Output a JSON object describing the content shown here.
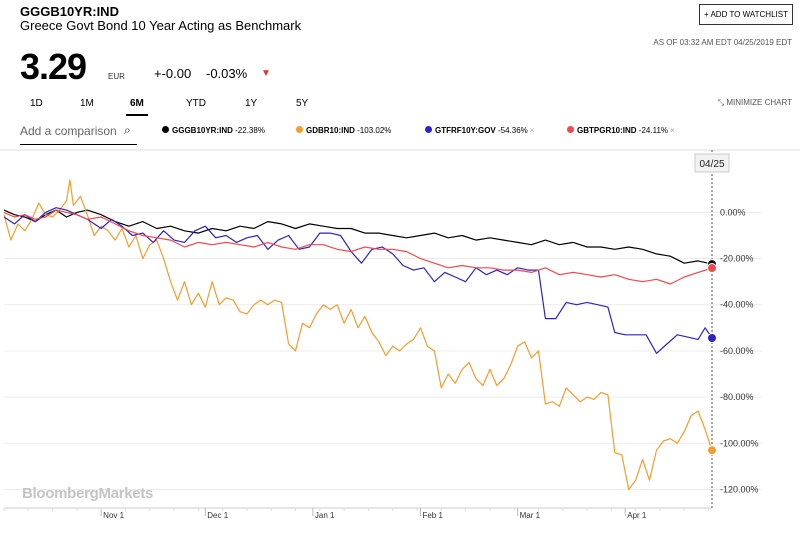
{
  "header": {
    "ticker": "GGGB10YR:IND",
    "name": "Greece Govt Bond 10 Year Acting as Benchmark",
    "watchlist_label": "+ ADD TO WATCHLIST",
    "as_of": "AS OF 03:32 AM EDT 04/25/2019 EDT",
    "price": "3.29",
    "currency": "EUR",
    "change": "+-0.00",
    "change_pct": "-0.03%",
    "change_icon": "down-triangle"
  },
  "tabs": [
    {
      "label": "1D",
      "active": false
    },
    {
      "label": "1M",
      "active": false
    },
    {
      "label": "6M",
      "active": true
    },
    {
      "label": "YTD",
      "active": false
    },
    {
      "label": "1Y",
      "active": false
    },
    {
      "label": "5Y",
      "active": false
    }
  ],
  "minimize_label": "MINIMIZE CHART",
  "compare": {
    "placeholder": "Add a comparison",
    "icon": "search-icon"
  },
  "legend": [
    {
      "label": "GGGB10YR:IND",
      "value": "-22.38%",
      "color": "#000000",
      "removable": false
    },
    {
      "label": "GDBR10:IND",
      "value": "-103.02%",
      "color": "#f39c2f",
      "removable": false
    },
    {
      "label": "GTFRF10Y:GOV",
      "value": "-54.36%",
      "color": "#2d22c8",
      "removable": true
    },
    {
      "label": "GBTPGR10:IND",
      "value": "-24.11%",
      "color": "#f0494d",
      "removable": true
    }
  ],
  "brand": "BloombergMarkets",
  "chart_data": {
    "type": "line",
    "x_tick_labels": [
      "Nov 1",
      "Dec 1",
      "Jan 1",
      "Feb 1",
      "Mar 1",
      "Apr 1"
    ],
    "y_tick_labels": [
      "0.00%",
      "-20.00%",
      "-40.00%",
      "-60.00%",
      "-80.00%",
      "-100.00%",
      "-120.00%"
    ],
    "ylim": [
      -128,
      27
    ],
    "x_range_days": [
      -28,
      176
    ],
    "crosshair_label": "04/25",
    "crosshair_day": 176,
    "grid": true,
    "series": [
      {
        "name": "GGGB10YR:IND",
        "color": "#000000",
        "end_value": -22.38,
        "points": [
          [
            -28,
            1
          ],
          [
            -25,
            -1
          ],
          [
            -22,
            -2
          ],
          [
            -19,
            -4
          ],
          [
            -16,
            -1
          ],
          [
            -13,
            1
          ],
          [
            -10,
            -2
          ],
          [
            -7,
            0
          ],
          [
            -4,
            1
          ],
          [
            0,
            -1
          ],
          [
            4,
            -4
          ],
          [
            8,
            -6
          ],
          [
            12,
            -4
          ],
          [
            16,
            -7
          ],
          [
            20,
            -6
          ],
          [
            24,
            -8
          ],
          [
            28,
            -9
          ],
          [
            32,
            -7
          ],
          [
            36,
            -8
          ],
          [
            40,
            -6
          ],
          [
            44,
            -7
          ],
          [
            48,
            -4
          ],
          [
            52,
            -5
          ],
          [
            56,
            -7
          ],
          [
            60,
            -5
          ],
          [
            64,
            -6
          ],
          [
            68,
            -7
          ],
          [
            72,
            -7
          ],
          [
            76,
            -9
          ],
          [
            80,
            -9
          ],
          [
            84,
            -10
          ],
          [
            88,
            -11
          ],
          [
            92,
            -10
          ],
          [
            96,
            -9
          ],
          [
            100,
            -11
          ],
          [
            104,
            -10
          ],
          [
            108,
            -12
          ],
          [
            112,
            -11
          ],
          [
            116,
            -12
          ],
          [
            120,
            -13
          ],
          [
            124,
            -14
          ],
          [
            128,
            -12
          ],
          [
            132,
            -14
          ],
          [
            136,
            -13
          ],
          [
            140,
            -15
          ],
          [
            144,
            -15
          ],
          [
            148,
            -16
          ],
          [
            152,
            -15
          ],
          [
            156,
            -16
          ],
          [
            160,
            -18
          ],
          [
            164,
            -19
          ],
          [
            168,
            -22
          ],
          [
            172,
            -21
          ],
          [
            176,
            -22.4
          ]
        ]
      },
      {
        "name": "GDBR10:IND",
        "color": "#f39c2f",
        "end_value": -103.02,
        "points": [
          [
            -28,
            -1
          ],
          [
            -26,
            -12
          ],
          [
            -24,
            -5
          ],
          [
            -22,
            -8
          ],
          [
            -20,
            -3
          ],
          [
            -18,
            4
          ],
          [
            -16,
            -1
          ],
          [
            -14,
            -2
          ],
          [
            -12,
            1
          ],
          [
            -10,
            5
          ],
          [
            -9,
            14
          ],
          [
            -8,
            3
          ],
          [
            -6,
            7
          ],
          [
            -4,
            -1
          ],
          [
            -2,
            -10
          ],
          [
            0,
            -6
          ],
          [
            2,
            -8
          ],
          [
            4,
            -12
          ],
          [
            6,
            -7
          ],
          [
            8,
            -15
          ],
          [
            10,
            -10
          ],
          [
            12,
            -20
          ],
          [
            14,
            -14
          ],
          [
            16,
            -12
          ],
          [
            18,
            -20
          ],
          [
            20,
            -30
          ],
          [
            22,
            -38
          ],
          [
            24,
            -30
          ],
          [
            26,
            -40
          ],
          [
            28,
            -35
          ],
          [
            30,
            -41
          ],
          [
            32,
            -30
          ],
          [
            34,
            -40
          ],
          [
            36,
            -37
          ],
          [
            38,
            -38
          ],
          [
            40,
            -43
          ],
          [
            42,
            -44
          ],
          [
            44,
            -40
          ],
          [
            46,
            -38
          ],
          [
            48,
            -40
          ],
          [
            50,
            -38
          ],
          [
            52,
            -39
          ],
          [
            54,
            -57
          ],
          [
            56,
            -60
          ],
          [
            58,
            -48
          ],
          [
            60,
            -50
          ],
          [
            62,
            -44
          ],
          [
            64,
            -40
          ],
          [
            66,
            -42
          ],
          [
            68,
            -40
          ],
          [
            70,
            -48
          ],
          [
            72,
            -42
          ],
          [
            74,
            -50
          ],
          [
            76,
            -45
          ],
          [
            78,
            -52
          ],
          [
            80,
            -56
          ],
          [
            82,
            -62
          ],
          [
            84,
            -58
          ],
          [
            86,
            -60
          ],
          [
            88,
            -57
          ],
          [
            90,
            -55
          ],
          [
            92,
            -50
          ],
          [
            94,
            -58
          ],
          [
            96,
            -60
          ],
          [
            98,
            -76
          ],
          [
            100,
            -70
          ],
          [
            102,
            -74
          ],
          [
            104,
            -68
          ],
          [
            106,
            -65
          ],
          [
            108,
            -72
          ],
          [
            110,
            -75
          ],
          [
            112,
            -68
          ],
          [
            114,
            -75
          ],
          [
            116,
            -72
          ],
          [
            118,
            -66
          ],
          [
            120,
            -58
          ],
          [
            122,
            -56
          ],
          [
            124,
            -63
          ],
          [
            126,
            -60
          ],
          [
            128,
            -83
          ],
          [
            130,
            -82
          ],
          [
            132,
            -84
          ],
          [
            134,
            -76
          ],
          [
            136,
            -79
          ],
          [
            138,
            -82
          ],
          [
            140,
            -80
          ],
          [
            142,
            -81
          ],
          [
            144,
            -78
          ],
          [
            146,
            -79
          ],
          [
            148,
            -104
          ],
          [
            150,
            -105
          ],
          [
            152,
            -120
          ],
          [
            154,
            -116
          ],
          [
            156,
            -107
          ],
          [
            158,
            -116
          ],
          [
            160,
            -103
          ],
          [
            162,
            -99
          ],
          [
            164,
            -98
          ],
          [
            166,
            -100
          ],
          [
            168,
            -95
          ],
          [
            170,
            -88
          ],
          [
            172,
            -86
          ],
          [
            174,
            -94
          ],
          [
            176,
            -103
          ]
        ]
      },
      {
        "name": "GTFRF10Y:GOV",
        "color": "#2d22c8",
        "end_value": -54.36,
        "points": [
          [
            -28,
            -2
          ],
          [
            -25,
            -5
          ],
          [
            -22,
            -1
          ],
          [
            -19,
            -4
          ],
          [
            -16,
            0
          ],
          [
            -13,
            2
          ],
          [
            -10,
            1
          ],
          [
            -7,
            -1
          ],
          [
            -4,
            -3
          ],
          [
            0,
            -7
          ],
          [
            3,
            -3
          ],
          [
            6,
            -6
          ],
          [
            9,
            -10
          ],
          [
            12,
            -9
          ],
          [
            15,
            -13
          ],
          [
            18,
            -8
          ],
          [
            21,
            -12
          ],
          [
            24,
            -13
          ],
          [
            27,
            -8
          ],
          [
            30,
            -6
          ],
          [
            33,
            -11
          ],
          [
            36,
            -10
          ],
          [
            39,
            -13
          ],
          [
            42,
            -11
          ],
          [
            45,
            -10
          ],
          [
            48,
            -16
          ],
          [
            51,
            -12
          ],
          [
            54,
            -10
          ],
          [
            57,
            -16
          ],
          [
            60,
            -15
          ],
          [
            63,
            -9
          ],
          [
            66,
            -9
          ],
          [
            69,
            -10
          ],
          [
            72,
            -17
          ],
          [
            75,
            -22
          ],
          [
            78,
            -16
          ],
          [
            81,
            -15
          ],
          [
            84,
            -18
          ],
          [
            87,
            -23
          ],
          [
            90,
            -25
          ],
          [
            93,
            -24
          ],
          [
            96,
            -30
          ],
          [
            99,
            -26
          ],
          [
            102,
            -28
          ],
          [
            105,
            -30
          ],
          [
            108,
            -24
          ],
          [
            111,
            -27
          ],
          [
            114,
            -25
          ],
          [
            117,
            -27
          ],
          [
            120,
            -24
          ],
          [
            123,
            -25
          ],
          [
            126,
            -25
          ],
          [
            128,
            -46
          ],
          [
            131,
            -46
          ],
          [
            134,
            -39
          ],
          [
            137,
            -40
          ],
          [
            140,
            -39
          ],
          [
            143,
            -40
          ],
          [
            146,
            -41
          ],
          [
            148,
            -52
          ],
          [
            151,
            -53
          ],
          [
            154,
            -53
          ],
          [
            157,
            -53
          ],
          [
            160,
            -61
          ],
          [
            163,
            -57
          ],
          [
            166,
            -53
          ],
          [
            169,
            -54
          ],
          [
            172,
            -55
          ],
          [
            174,
            -50
          ],
          [
            176,
            -54.4
          ]
        ]
      },
      {
        "name": "GBTPGR10:IND",
        "color": "#f0494d",
        "end_value": -24.11,
        "points": [
          [
            -28,
            0
          ],
          [
            -25,
            -2
          ],
          [
            -22,
            -1
          ],
          [
            -19,
            -3
          ],
          [
            -16,
            -2
          ],
          [
            -13,
            1
          ],
          [
            -10,
            0
          ],
          [
            -7,
            -1
          ],
          [
            -4,
            -3
          ],
          [
            0,
            -2
          ],
          [
            4,
            -5
          ],
          [
            8,
            -8
          ],
          [
            12,
            -10
          ],
          [
            16,
            -11
          ],
          [
            20,
            -12
          ],
          [
            24,
            -15
          ],
          [
            28,
            -13
          ],
          [
            32,
            -14
          ],
          [
            36,
            -13
          ],
          [
            40,
            -14
          ],
          [
            44,
            -15
          ],
          [
            48,
            -13
          ],
          [
            52,
            -15
          ],
          [
            56,
            -16
          ],
          [
            60,
            -14
          ],
          [
            64,
            -14
          ],
          [
            68,
            -16
          ],
          [
            72,
            -17
          ],
          [
            76,
            -15
          ],
          [
            80,
            -16
          ],
          [
            84,
            -16
          ],
          [
            88,
            -17
          ],
          [
            92,
            -20
          ],
          [
            96,
            -22
          ],
          [
            100,
            -24
          ],
          [
            104,
            -23
          ],
          [
            108,
            -24
          ],
          [
            112,
            -24
          ],
          [
            116,
            -25
          ],
          [
            120,
            -25
          ],
          [
            124,
            -26
          ],
          [
            128,
            -24
          ],
          [
            132,
            -27
          ],
          [
            136,
            -26
          ],
          [
            140,
            -27
          ],
          [
            144,
            -28
          ],
          [
            148,
            -27
          ],
          [
            152,
            -29
          ],
          [
            156,
            -30
          ],
          [
            160,
            -29
          ],
          [
            164,
            -31
          ],
          [
            168,
            -28
          ],
          [
            172,
            -26
          ],
          [
            176,
            -24.1
          ]
        ]
      }
    ]
  }
}
